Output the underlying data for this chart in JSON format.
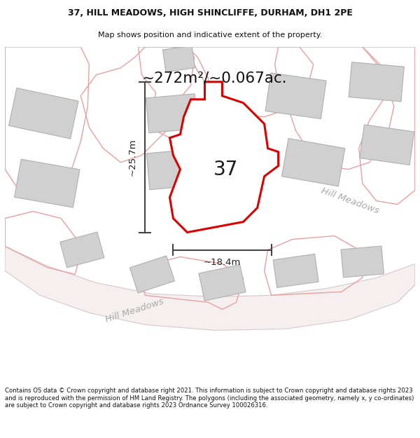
{
  "title_line1": "37, HILL MEADOWS, HIGH SHINCLIFFE, DURHAM, DH1 2PE",
  "title_line2": "Map shows position and indicative extent of the property.",
  "area_text": "~272m²/~0.067ac.",
  "label_37": "37",
  "dim_height": "~25.7m",
  "dim_width": "~18.4m",
  "road_label_bottom": "Hill Meadows",
  "road_label_right": "Hill Meadows",
  "footer_text": "Contains OS data © Crown copyright and database right 2021. This information is subject to Crown copyright and database rights 2023 and is reproduced with the permission of HM Land Registry. The polygons (including the associated geometry, namely x, y co-ordinates) are subject to Crown copyright and database rights 2023 Ordnance Survey 100026316.",
  "bg_color": "#ffffff",
  "highlight_color": "#dd0000",
  "neighbor_stroke": "#e8a0a0",
  "building_fill": "#d0d0d0",
  "building_stroke": "#b0b0b0",
  "road_label_color": "#aaaaaa",
  "text_color": "#222222",
  "dim_line_color": "#444444"
}
